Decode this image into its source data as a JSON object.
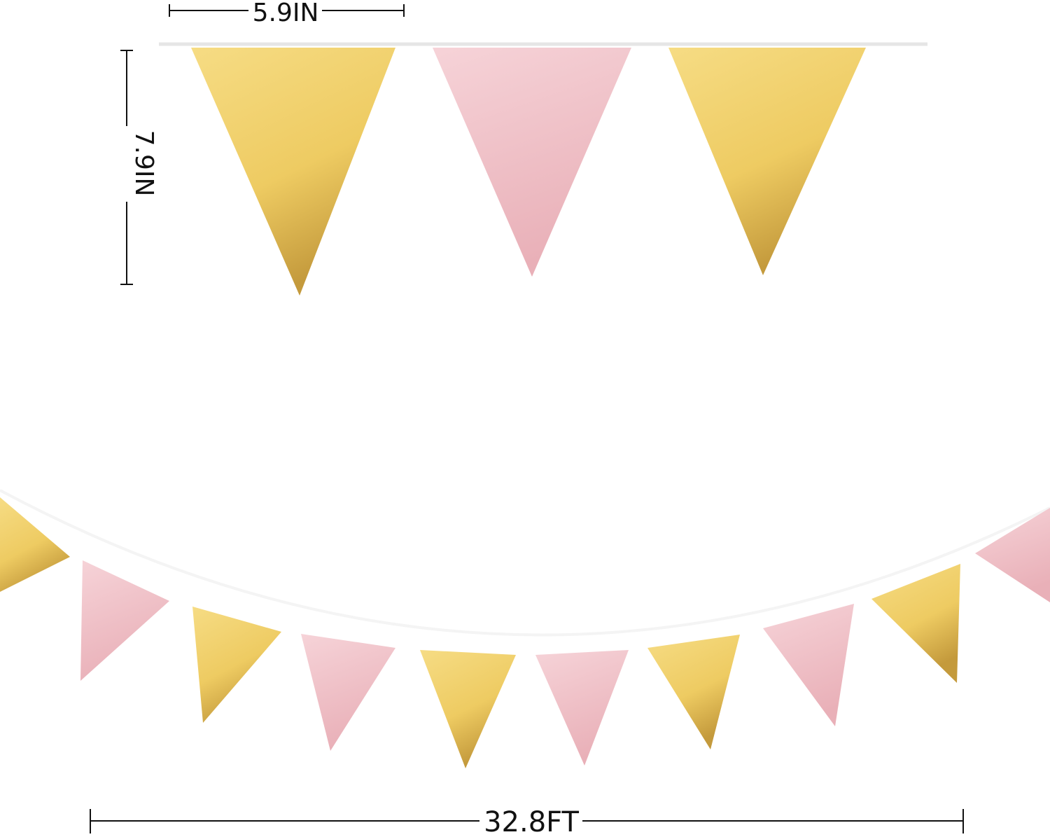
{
  "dimensions": {
    "flag_width": "5.9IN",
    "flag_height": "7.9IN",
    "total_length": "32.8FT"
  },
  "colors": {
    "gold": "#f2d16e",
    "gold_dark": "#c9a040",
    "pink": "#f3c9cf",
    "pink_dark": "#e8aeb6",
    "string": "#e6e6e6",
    "dimension_line": "#111111"
  },
  "flags": {
    "top_row": [
      "gold",
      "pink",
      "gold"
    ],
    "bottom_row": [
      "gold",
      "pink",
      "gold",
      "pink",
      "gold",
      "pink",
      "gold",
      "pink",
      "gold",
      "pink"
    ]
  }
}
